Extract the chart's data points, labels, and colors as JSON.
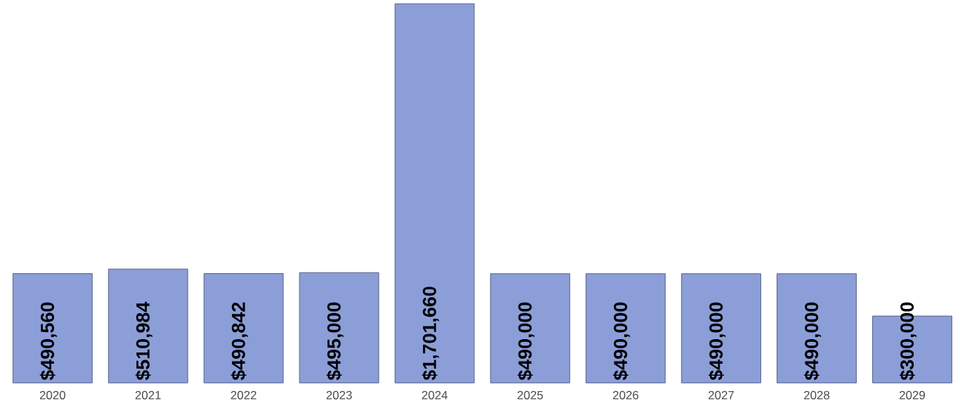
{
  "chart_data": {
    "type": "bar",
    "categories": [
      "2020",
      "2021",
      "2022",
      "2023",
      "2024",
      "2025",
      "2026",
      "2027",
      "2028",
      "2029"
    ],
    "values": [
      490560,
      510984,
      490842,
      495000,
      1701660,
      490000,
      490000,
      490000,
      490000,
      300000
    ],
    "value_labels": [
      "$490,560",
      "$510,984",
      "$490,842",
      "$495,000",
      "$1,701,660",
      "$490,000",
      "$490,000",
      "$490,000",
      "$490,000",
      "$300,000"
    ],
    "color": "#8c9ed8",
    "tick_labels": "x"
  }
}
